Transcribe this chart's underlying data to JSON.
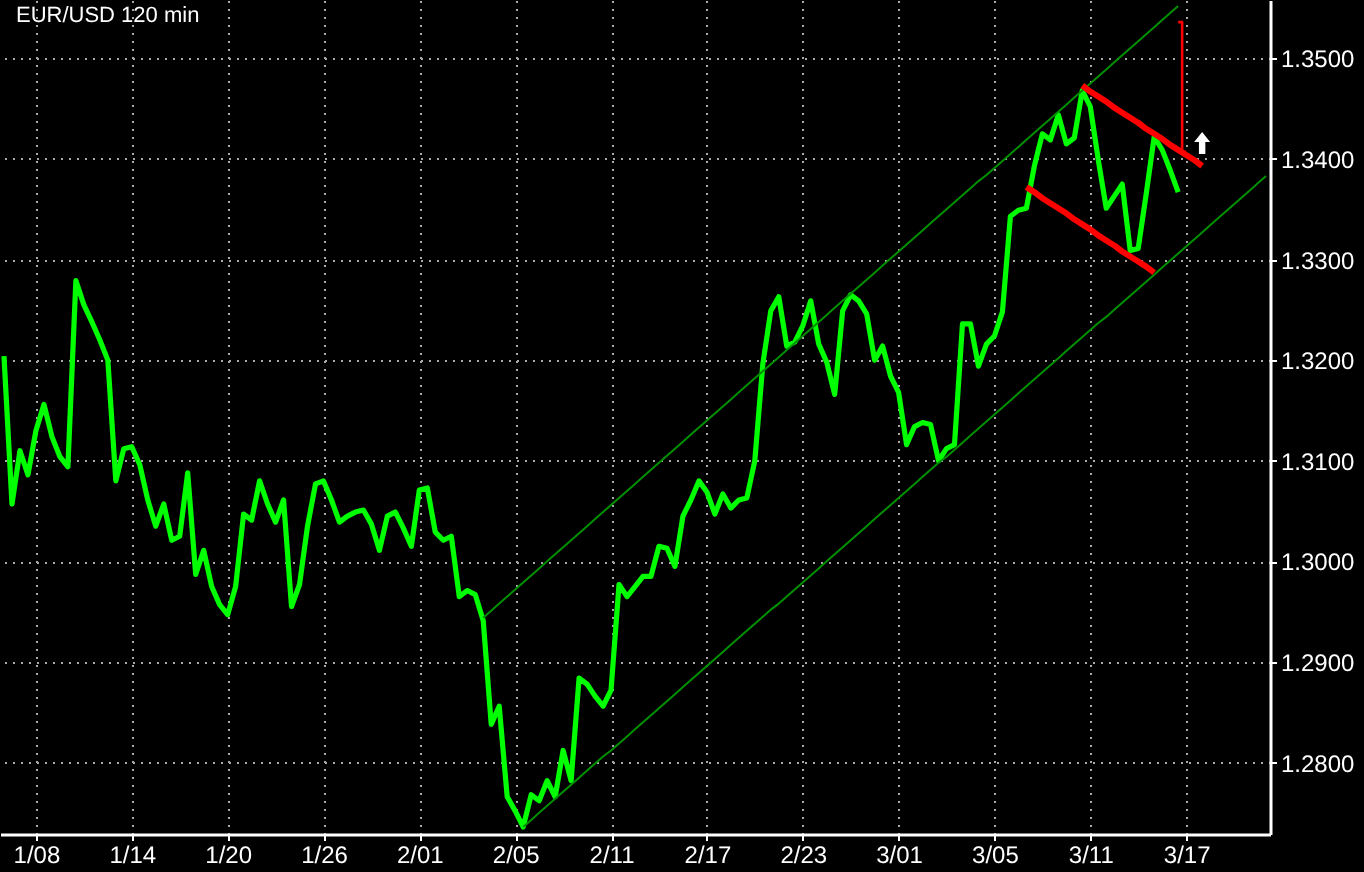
{
  "chart_data": {
    "type": "line",
    "title": "EUR/USD 120 min",
    "categories": [
      null,
      null,
      null,
      null,
      "1/08",
      null,
      null,
      null,
      null,
      null,
      null,
      null,
      null,
      null,
      null,
      null,
      "1/14",
      null,
      null,
      null,
      null,
      null,
      null,
      null,
      null,
      null,
      null,
      null,
      "1/20",
      null,
      null,
      null,
      null,
      null,
      null,
      null,
      null,
      null,
      null,
      null,
      "1/26",
      null,
      null,
      null,
      null,
      null,
      null,
      null,
      null,
      null,
      null,
      null,
      "2/01",
      null,
      null,
      null,
      null,
      null,
      null,
      null,
      null,
      null,
      null,
      null,
      "2/05",
      null,
      null,
      null,
      null,
      null,
      null,
      null,
      null,
      null,
      null,
      null,
      "2/11",
      null,
      null,
      null,
      null,
      null,
      null,
      null,
      null,
      null,
      null,
      null,
      "2/17",
      null,
      null,
      null,
      null,
      null,
      null,
      null,
      null,
      null,
      null,
      null,
      "2/23",
      null,
      null,
      null,
      null,
      null,
      null,
      null,
      null,
      null,
      null,
      null,
      "3/01",
      null,
      null,
      null,
      null,
      null,
      null,
      null,
      null,
      null,
      null,
      null,
      "3/05",
      null,
      null,
      null,
      null,
      null,
      null,
      null,
      null,
      null,
      null,
      null,
      "3/11",
      null,
      null,
      null,
      null,
      null,
      null,
      null,
      null,
      null,
      null,
      null,
      "3/17",
      null,
      null,
      null,
      null,
      null,
      null,
      null,
      null,
      null,
      null
    ],
    "series": [
      {
        "color": "#00ff00",
        "values": [
          1.3204,
          1.3057,
          1.311,
          1.3086,
          1.313,
          1.3156,
          1.3124,
          1.3104,
          1.3094,
          1.3279,
          1.3255,
          1.3238,
          1.322,
          1.32,
          1.308,
          1.3112,
          1.3114,
          1.3096,
          1.3061,
          1.3035,
          1.3057,
          1.3021,
          1.3025,
          1.3088,
          1.2987,
          1.3011,
          1.2975,
          1.2957,
          1.2947,
          1.2975,
          1.3047,
          1.3041,
          1.308,
          1.3057,
          1.3039,
          1.3061,
          1.2955,
          1.2977,
          1.3035,
          1.3077,
          1.308,
          1.3061,
          1.3039,
          1.3045,
          1.3049,
          1.3051,
          1.3037,
          1.3011,
          1.3045,
          1.3049,
          1.3033,
          1.3015,
          1.3071,
          1.3073,
          1.3029,
          1.3021,
          1.3025,
          1.2965,
          1.2971,
          1.2967,
          1.2941,
          1.2838,
          1.2856,
          1.2766,
          1.2752,
          1.2736,
          1.2768,
          1.2762,
          1.2782,
          1.2766,
          1.2812,
          1.2782,
          1.2884,
          1.2878,
          1.2866,
          1.2856,
          1.2872,
          1.2977,
          1.2965,
          1.2975,
          1.2985,
          1.2985,
          1.3015,
          1.3013,
          1.2995,
          1.3045,
          1.3061,
          1.308,
          1.3069,
          1.3047,
          1.3067,
          1.3053,
          1.3061,
          1.3063,
          1.31,
          1.3196,
          1.3249,
          1.3263,
          1.3214,
          1.3218,
          1.3234,
          1.3259,
          1.3216,
          1.3198,
          1.3166,
          1.3249,
          1.3265,
          1.3259,
          1.3246,
          1.32,
          1.3214,
          1.3184,
          1.3168,
          1.3116,
          1.3134,
          1.3138,
          1.3136,
          1.31,
          1.3112,
          1.3116,
          1.3236,
          1.3236,
          1.3194,
          1.3216,
          1.3224,
          1.3248,
          1.3343,
          1.3349,
          1.3351,
          1.3393,
          1.3425,
          1.3419,
          1.3444,
          1.3415,
          1.3421,
          1.3468,
          1.3452,
          1.3399,
          1.3351,
          1.3363,
          1.3375,
          1.3309,
          1.3311,
          1.3365,
          1.3422,
          1.3409,
          1.3389,
          1.3367,
          null,
          null,
          null,
          null,
          null,
          null,
          null,
          null,
          null,
          null,
          null
        ]
      },
      {
        "color": "#009000",
        "values": [
          null,
          null,
          null,
          null,
          null,
          null,
          null,
          null,
          null,
          null,
          null,
          null,
          null,
          null,
          null,
          null,
          null,
          null,
          null,
          null,
          null,
          null,
          null,
          null,
          null,
          null,
          null,
          null,
          null,
          null,
          null,
          null,
          null,
          null,
          null,
          null,
          null,
          null,
          null,
          null,
          null,
          null,
          null,
          null,
          null,
          null,
          null,
          null,
          null,
          null,
          null,
          null,
          null,
          null,
          null,
          null,
          null,
          null,
          null,
          null,
          1.2944,
          1.2951,
          1.2958,
          1.2965,
          1.2972,
          1.2979,
          1.2986,
          1.2993,
          1.3,
          1.3007,
          1.3014,
          1.3021,
          1.3028,
          1.3035,
          1.3042,
          1.3049,
          1.3056,
          1.3063,
          1.307,
          1.3077,
          1.3084,
          1.3091,
          1.3098,
          1.3105,
          1.3112,
          1.3119,
          1.3126,
          1.3133,
          1.314,
          1.3147,
          1.3154,
          1.3161,
          1.3168,
          1.3175,
          1.3182,
          1.3189,
          1.3196,
          1.3203,
          1.321,
          1.3217,
          1.3224,
          1.3231,
          1.3238,
          1.3245,
          1.3252,
          1.3259,
          1.3266,
          1.3273,
          1.328,
          1.3287,
          1.3294,
          1.3301,
          1.3308,
          1.3315,
          1.3322,
          1.3329,
          1.3336,
          1.3343,
          1.335,
          1.3357,
          1.3364,
          1.3371,
          1.3378,
          1.3384,
          1.3391,
          1.3398,
          1.3405,
          1.3412,
          1.3419,
          1.3426,
          1.3433,
          1.344,
          1.3447,
          1.3454,
          1.3461,
          1.3468,
          1.3475,
          1.3482,
          1.3489,
          1.3496,
          1.3503,
          1.351,
          1.3517,
          1.3524,
          1.3531,
          1.3538,
          1.3545,
          1.3552,
          null,
          null,
          null,
          null,
          null,
          null,
          null,
          null,
          null,
          null,
          null
        ]
      },
      {
        "color": "#009000",
        "values": [
          null,
          null,
          null,
          null,
          null,
          null,
          null,
          null,
          null,
          null,
          null,
          null,
          null,
          null,
          null,
          null,
          null,
          null,
          null,
          null,
          null,
          null,
          null,
          null,
          null,
          null,
          null,
          null,
          null,
          null,
          null,
          null,
          null,
          null,
          null,
          null,
          null,
          null,
          null,
          null,
          null,
          null,
          null,
          null,
          null,
          null,
          null,
          null,
          null,
          null,
          null,
          null,
          null,
          null,
          null,
          null,
          null,
          null,
          null,
          null,
          null,
          null,
          null,
          null,
          null,
          1.2736,
          1.2743,
          1.275,
          1.2757,
          1.2764,
          1.2771,
          1.2778,
          1.2785,
          1.2792,
          1.2799,
          1.2806,
          1.2812,
          1.2819,
          1.2826,
          1.2833,
          1.284,
          1.2847,
          1.2854,
          1.2861,
          1.2868,
          1.2875,
          1.2882,
          1.2889,
          1.2896,
          1.2903,
          1.291,
          1.2917,
          1.2924,
          1.2931,
          1.2938,
          1.2945,
          1.2952,
          1.2958,
          1.2965,
          1.2972,
          1.2979,
          1.2986,
          1.2993,
          1.3,
          1.3007,
          1.3014,
          1.3021,
          1.3028,
          1.3035,
          1.3042,
          1.3049,
          1.3056,
          1.3063,
          1.307,
          1.3077,
          1.3084,
          1.3091,
          1.3098,
          1.3104,
          1.3111,
          1.3118,
          1.3125,
          1.3132,
          1.3139,
          1.3146,
          1.3153,
          1.316,
          1.3167,
          1.3174,
          1.3181,
          1.3188,
          1.3195,
          1.3202,
          1.3209,
          1.3216,
          1.3223,
          1.323,
          1.3237,
          1.3243,
          1.325,
          1.3257,
          1.3264,
          1.3271,
          1.3278,
          1.3285,
          1.3292,
          1.3299,
          1.3306,
          1.3313,
          1.332,
          1.3327,
          1.3334,
          1.3341,
          1.3348,
          1.3355,
          1.3362,
          1.3369,
          1.3376,
          1.3383
        ]
      },
      {
        "color": "#ff0000",
        "values": [
          null,
          null,
          null,
          null,
          null,
          null,
          null,
          null,
          null,
          null,
          null,
          null,
          null,
          null,
          null,
          null,
          null,
          null,
          null,
          null,
          null,
          null,
          null,
          null,
          null,
          null,
          null,
          null,
          null,
          null,
          null,
          null,
          null,
          null,
          null,
          null,
          null,
          null,
          null,
          null,
          null,
          null,
          null,
          null,
          null,
          null,
          null,
          null,
          null,
          null,
          null,
          null,
          null,
          null,
          null,
          null,
          null,
          null,
          null,
          null,
          null,
          null,
          null,
          null,
          null,
          null,
          null,
          null,
          null,
          null,
          null,
          null,
          null,
          null,
          null,
          null,
          null,
          null,
          null,
          null,
          null,
          null,
          null,
          null,
          null,
          null,
          null,
          null,
          null,
          null,
          null,
          null,
          null,
          null,
          null,
          null,
          null,
          null,
          null,
          null,
          null,
          null,
          null,
          null,
          null,
          null,
          null,
          null,
          null,
          null,
          null,
          null,
          null,
          null,
          null,
          null,
          null,
          null,
          null,
          null,
          null,
          null,
          null,
          null,
          null,
          null,
          null,
          null,
          null,
          null,
          null,
          null,
          null,
          null,
          null,
          1.3473,
          1.3467,
          1.3462,
          1.3457,
          1.3451,
          1.3446,
          1.3441,
          1.3436,
          1.343,
          1.3425,
          1.342,
          1.3414,
          1.3409,
          1.3404,
          1.3399,
          1.3393,
          null,
          null,
          null,
          null,
          null,
          null,
          null,
          null
        ]
      },
      {
        "color": "#ff0000",
        "values": [
          null,
          null,
          null,
          null,
          null,
          null,
          null,
          null,
          null,
          null,
          null,
          null,
          null,
          null,
          null,
          null,
          null,
          null,
          null,
          null,
          null,
          null,
          null,
          null,
          null,
          null,
          null,
          null,
          null,
          null,
          null,
          null,
          null,
          null,
          null,
          null,
          null,
          null,
          null,
          null,
          null,
          null,
          null,
          null,
          null,
          null,
          null,
          null,
          null,
          null,
          null,
          null,
          null,
          null,
          null,
          null,
          null,
          null,
          null,
          null,
          null,
          null,
          null,
          null,
          null,
          null,
          null,
          null,
          null,
          null,
          null,
          null,
          null,
          null,
          null,
          null,
          null,
          null,
          null,
          null,
          null,
          null,
          null,
          null,
          null,
          null,
          null,
          null,
          null,
          null,
          null,
          null,
          null,
          null,
          null,
          null,
          null,
          null,
          null,
          null,
          null,
          null,
          null,
          null,
          null,
          null,
          null,
          null,
          null,
          null,
          null,
          null,
          null,
          null,
          null,
          null,
          null,
          null,
          null,
          null,
          null,
          null,
          null,
          null,
          null,
          null,
          null,
          null,
          1.3372,
          1.3367,
          1.3361,
          1.3356,
          1.3351,
          1.3346,
          1.334,
          1.3335,
          1.333,
          1.3324,
          1.3319,
          1.3314,
          1.3308,
          1.3303,
          1.3298,
          1.3293,
          1.3287,
          null,
          null,
          null,
          null,
          null,
          null,
          null,
          null,
          null,
          null,
          null,
          null,
          null,
          null
        ]
      },
      {
        "type": "step",
        "color": "#ff0000",
        "values": [
          null,
          null,
          null,
          null,
          null,
          null,
          null,
          null,
          null,
          null,
          null,
          null,
          null,
          null,
          null,
          null,
          null,
          null,
          null,
          null,
          null,
          null,
          null,
          null,
          null,
          null,
          null,
          null,
          null,
          null,
          null,
          null,
          null,
          null,
          null,
          null,
          null,
          null,
          null,
          null,
          null,
          null,
          null,
          null,
          null,
          null,
          null,
          null,
          null,
          null,
          null,
          null,
          null,
          null,
          null,
          null,
          null,
          null,
          null,
          null,
          null,
          null,
          null,
          null,
          null,
          null,
          null,
          null,
          null,
          null,
          null,
          null,
          null,
          null,
          null,
          null,
          null,
          null,
          null,
          null,
          null,
          null,
          null,
          null,
          null,
          null,
          null,
          null,
          null,
          null,
          null,
          null,
          null,
          null,
          null,
          null,
          null,
          null,
          null,
          null,
          null,
          null,
          null,
          null,
          null,
          null,
          null,
          null,
          null,
          null,
          null,
          null,
          null,
          null,
          null,
          null,
          null,
          null,
          null,
          null,
          null,
          null,
          null,
          null,
          null,
          null,
          null,
          null,
          null,
          null,
          null,
          null,
          null,
          null,
          null,
          null,
          null,
          null,
          null,
          null,
          null,
          null,
          null,
          null,
          null,
          null,
          null,
          1.3536,
          1.3407,
          null,
          null,
          null,
          null,
          null,
          null,
          null,
          null,
          null,
          null
        ]
      }
    ],
    "ylim": [
      1.2729,
      1.3558
    ],
    "yticks": [
      {
        "value": 1.28,
        "label": "1.2800"
      },
      {
        "value": 1.29,
        "label": "1.2900"
      },
      {
        "value": 1.3,
        "label": "1.3000"
      },
      {
        "value": 1.31,
        "label": "1.3100"
      },
      {
        "value": 1.32,
        "label": "1.3200"
      },
      {
        "value": 1.33,
        "label": "1.3300"
      },
      {
        "value": 1.34,
        "label": "1.3400"
      },
      {
        "value": 1.35,
        "label": "1.3500"
      }
    ],
    "grid": true
  }
}
